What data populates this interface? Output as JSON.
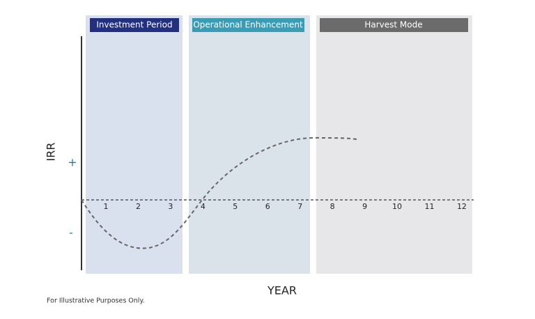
{
  "phases": [
    {
      "label": "Investment Period"
    },
    {
      "label": "Operational Enhancement"
    },
    {
      "label": "Harvest Mode"
    }
  ],
  "y_axis": {
    "label": "IRR",
    "positive": "+",
    "negative": "-"
  },
  "x_axis": {
    "label": "YEAR",
    "years": [
      1,
      2,
      3,
      4,
      5,
      6,
      7,
      8,
      9,
      10,
      11,
      12
    ]
  },
  "footnote": "For Illustrative Purposes Only."
}
